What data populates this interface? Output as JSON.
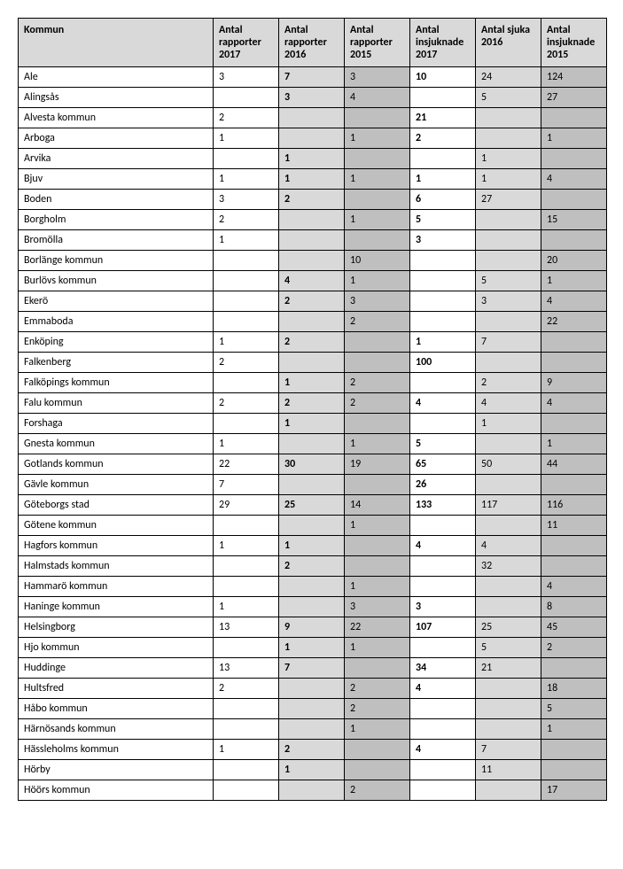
{
  "table": {
    "header_bg": "#d9d9d9",
    "col_bg": [
      "#ffffff",
      "#ffffff",
      "#d9d9d9",
      "#bfbfbf",
      "#ffffff",
      "#d9d9d9",
      "#bfbfbf"
    ],
    "bold_cols": [
      false,
      false,
      true,
      false,
      true,
      false,
      false
    ],
    "columns": [
      "Kommun",
      "Antal rapporter 2017",
      "Antal rapporter 2016",
      "Antal rapporter 2015",
      "Antal insjuknade 2017",
      "Antal sjuka 2016",
      "Antal insjuknade 2015"
    ],
    "rows": [
      [
        "Ale",
        "3",
        "7",
        "3",
        "10",
        "24",
        "124"
      ],
      [
        "Alingsås",
        "",
        "3",
        "4",
        "",
        "5",
        "27"
      ],
      [
        "Alvesta kommun",
        "2",
        "",
        "",
        "21",
        "",
        ""
      ],
      [
        "Arboga",
        "1",
        "",
        "1",
        "2",
        "",
        "1"
      ],
      [
        "Arvika",
        "",
        "1",
        "",
        "",
        "1",
        ""
      ],
      [
        "Bjuv",
        "1",
        "1",
        "1",
        "1",
        "1",
        "4"
      ],
      [
        "Boden",
        "3",
        "2",
        "",
        "6",
        "27",
        ""
      ],
      [
        "Borgholm",
        "2",
        "",
        "1",
        "5",
        "",
        "15"
      ],
      [
        "Bromölla",
        "1",
        "",
        "",
        "3",
        "",
        ""
      ],
      [
        "Borlänge kommun",
        "",
        "",
        "10",
        "",
        "",
        "20"
      ],
      [
        "Burlövs kommun",
        "",
        "4",
        "1",
        "",
        "5",
        "1"
      ],
      [
        "Ekerö",
        "",
        "2",
        "3",
        "",
        "3",
        "4"
      ],
      [
        "Emmaboda",
        "",
        "",
        "2",
        "",
        "",
        "22"
      ],
      [
        "Enköping",
        "1",
        "2",
        "",
        "1",
        "7",
        ""
      ],
      [
        "Falkenberg",
        "2",
        "",
        "",
        "100",
        "",
        ""
      ],
      [
        "Falköpings kommun",
        "",
        "1",
        "2",
        "",
        "2",
        "9"
      ],
      [
        "Falu kommun",
        "2",
        "2",
        "2",
        "4",
        "4",
        "4"
      ],
      [
        "Forshaga",
        "",
        "1",
        "",
        "",
        "1",
        ""
      ],
      [
        "Gnesta kommun",
        "1",
        "",
        "1",
        "5",
        "",
        "1"
      ],
      [
        "Gotlands kommun",
        "22",
        "30",
        "19",
        "65",
        "50",
        "44"
      ],
      [
        "Gävle kommun",
        "7",
        "",
        "",
        "26",
        "",
        ""
      ],
      [
        "Göteborgs stad",
        "29",
        "25",
        "14",
        "133",
        "117",
        "116"
      ],
      [
        "Götene kommun",
        "",
        "",
        "1",
        "",
        "",
        "11"
      ],
      [
        "Hagfors kommun",
        "1",
        "1",
        "",
        "4",
        "4",
        ""
      ],
      [
        "Halmstads kommun",
        "",
        "2",
        "",
        "",
        "32",
        ""
      ],
      [
        "Hammarö kommun",
        "",
        "",
        "1",
        "",
        "",
        "4"
      ],
      [
        "Haninge kommun",
        "1",
        "",
        "3",
        "3",
        "",
        "8"
      ],
      [
        "Helsingborg",
        "13",
        "9",
        "22",
        "107",
        "25",
        "45"
      ],
      [
        "Hjo kommun",
        "",
        "1",
        "1",
        "",
        "5",
        "2"
      ],
      [
        "Huddinge",
        "13",
        "7",
        "",
        "34",
        "21",
        ""
      ],
      [
        "Hultsfred",
        "2",
        "",
        "2",
        "4",
        "",
        "18"
      ],
      [
        "Håbo kommun",
        "",
        "",
        "2",
        "",
        "",
        "5"
      ],
      [
        "Härnösands kommun",
        "",
        "",
        "1",
        "",
        "",
        "1"
      ],
      [
        "Hässleholms kommun",
        "1",
        "2",
        "",
        "4",
        "7",
        ""
      ],
      [
        "Hörby",
        "",
        "1",
        "",
        "",
        "11",
        ""
      ],
      [
        "Höörs kommun",
        "",
        "",
        "2",
        "",
        "",
        "17"
      ]
    ]
  }
}
